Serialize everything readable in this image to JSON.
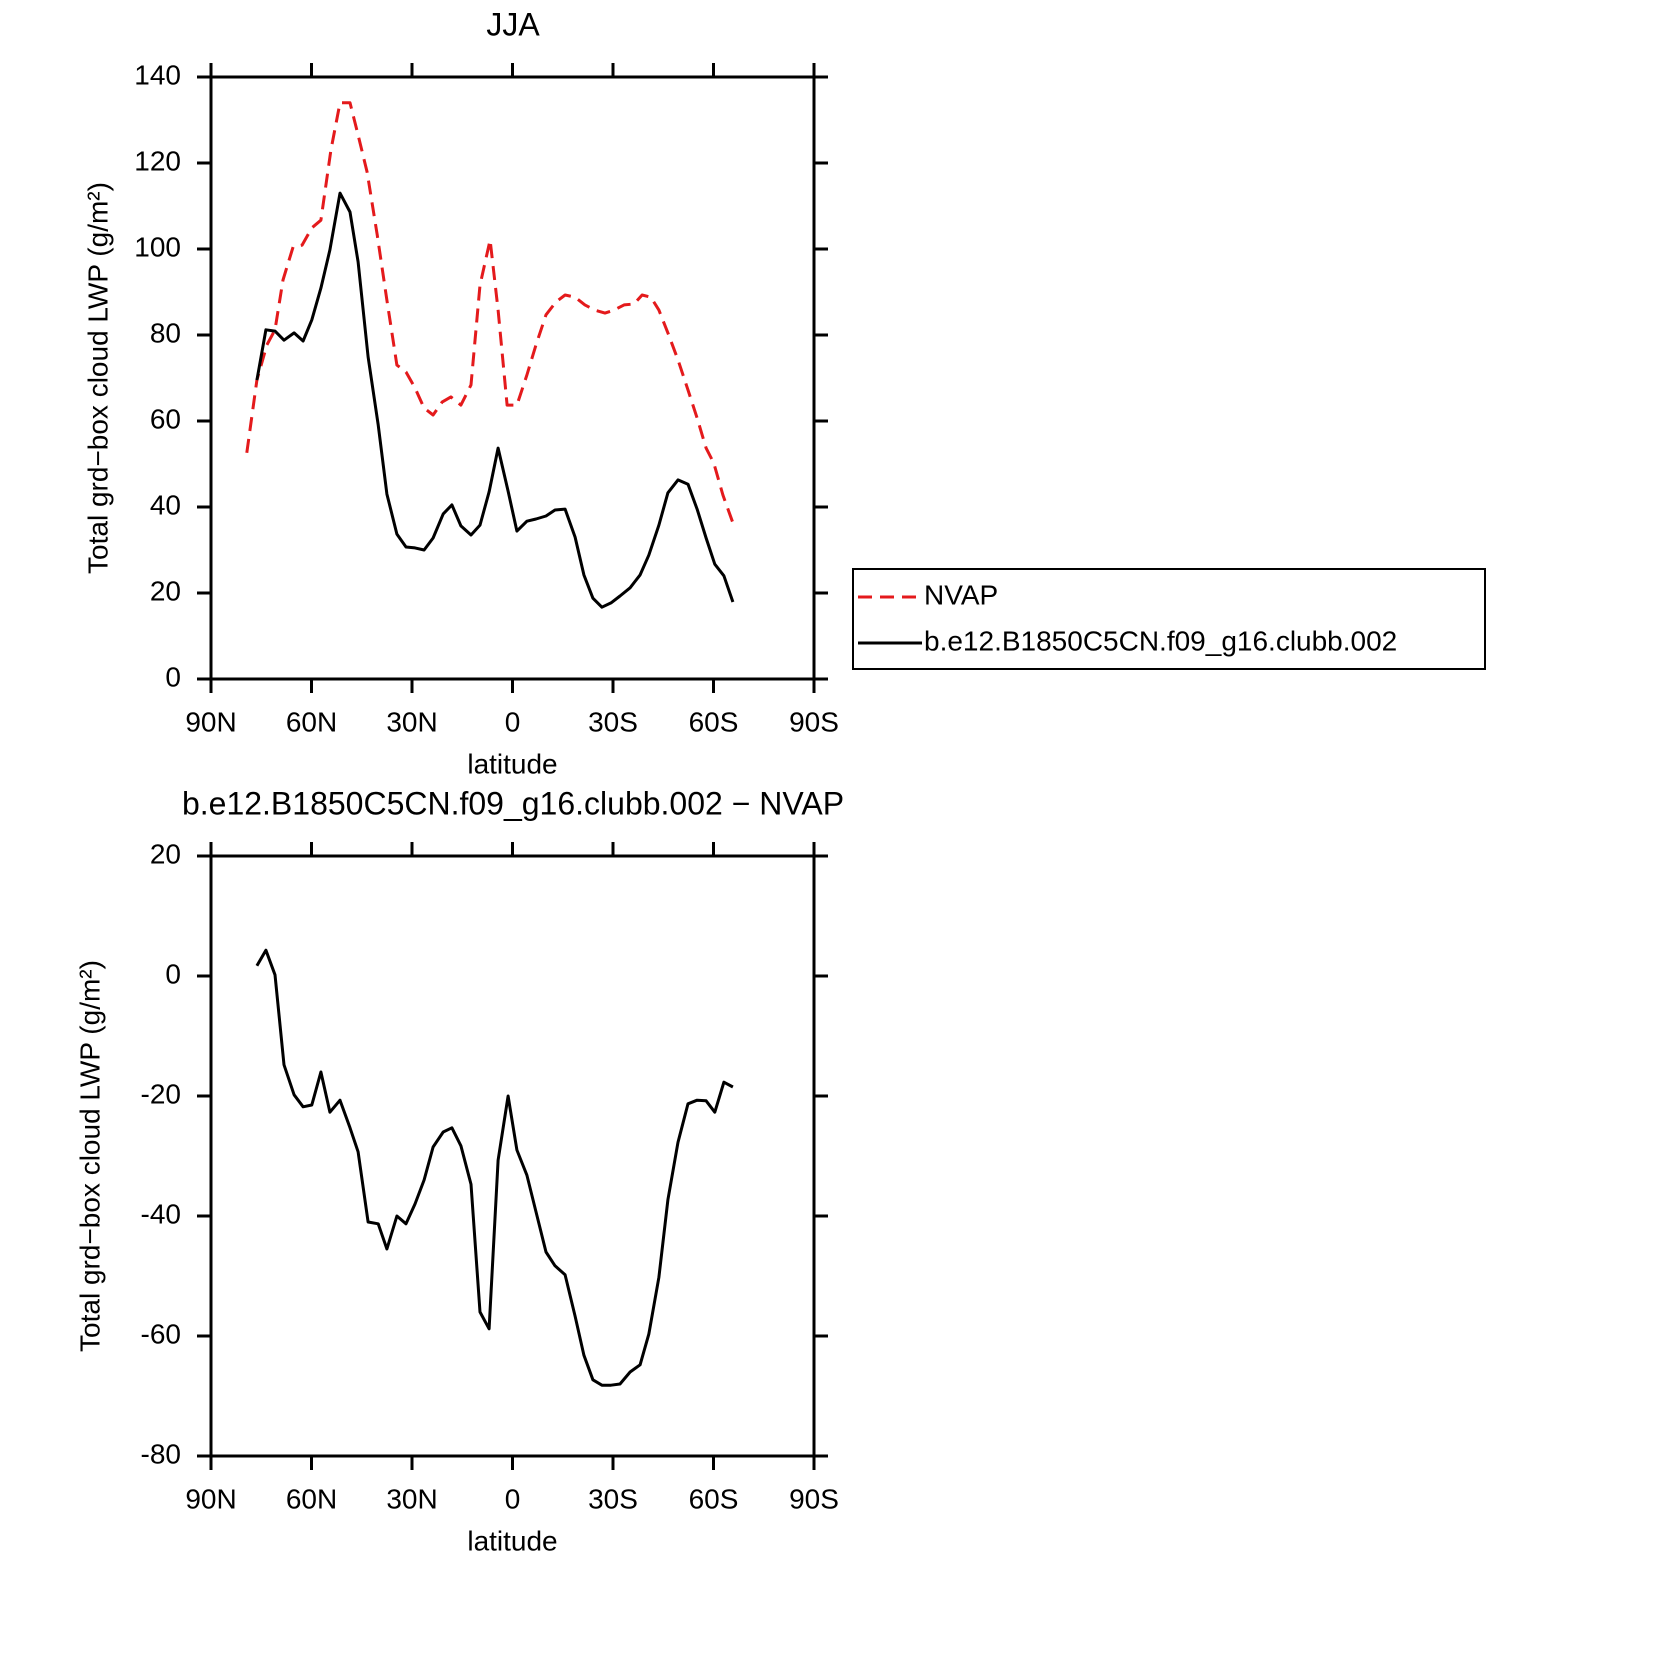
{
  "chart_data": [
    {
      "type": "line",
      "title": "JJA",
      "xlabel": "latitude",
      "ylabel": "Total grd−box cloud LWP (g/m²)",
      "xlim": [
        90,
        -90
      ],
      "xticks": [
        {
          "value": 90,
          "label": "90N"
        },
        {
          "value": 60,
          "label": "60N"
        },
        {
          "value": 30,
          "label": "30N"
        },
        0,
        {
          "value": -30,
          "label": "30S"
        },
        {
          "value": -60,
          "label": "60S"
        },
        {
          "value": -90,
          "label": "90S"
        }
      ],
      "ylim": [
        0,
        140
      ],
      "yticks": [
        0,
        20,
        40,
        60,
        80,
        100,
        120,
        140
      ],
      "legend": "right",
      "series": [
        {
          "name": "NVAP",
          "color": "#e41a1c",
          "dash": true,
          "x": [
            79.3,
            76.3,
            73.3,
            70.9,
            68.5,
            65.5,
            62.8,
            59.9,
            57.2,
            54.2,
            51.5,
            48.5,
            46.1,
            43.4,
            40.4,
            37.5,
            34.5,
            31.8,
            29.1,
            26.4,
            23.7,
            21.0,
            18.4,
            15.4,
            12.4,
            9.7,
            6.7,
            4.3,
            1.6,
            -1.3,
            -4.3,
            -7.0,
            -10.0,
            -13.0,
            -15.7,
            -18.7,
            -21.6,
            -24.6,
            -27.6,
            -30.3,
            -33.3,
            -36.3,
            -38.7,
            -41.3,
            -43.7,
            -46.4,
            -49.4,
            -52.4,
            -55.1,
            -57.8,
            -60.1,
            -62.8,
            -65.8
          ],
          "values": [
            52.6,
            69.5,
            77.7,
            81.2,
            92.8,
            100.5,
            100.9,
            104.9,
            106.7,
            123.0,
            134.0,
            134.0,
            126.5,
            117.9,
            103.3,
            88.1,
            73.0,
            71.4,
            67.7,
            63.0,
            61.4,
            64.4,
            65.6,
            63.7,
            68.4,
            91.6,
            102.1,
            85.8,
            63.7,
            63.7,
            70.7,
            77.7,
            84.7,
            87.7,
            89.3,
            88.8,
            87.0,
            85.8,
            85.1,
            85.8,
            87.0,
            87.2,
            89.3,
            88.8,
            85.8,
            80.5,
            74.2,
            67.2,
            60.7,
            53.7,
            50.2,
            42.8,
            36.3
          ]
        },
        {
          "name": "b.e12.B1850C5CN.f09_g16.clubb.002",
          "color": "#000000",
          "dash": false,
          "x": [
            76.3,
            73.6,
            70.9,
            68.2,
            65.2,
            62.5,
            59.9,
            57.2,
            54.5,
            51.5,
            48.5,
            46.1,
            43.1,
            40.1,
            37.5,
            34.5,
            31.8,
            29.1,
            26.4,
            23.7,
            20.7,
            18.1,
            15.4,
            12.4,
            9.7,
            7.0,
            4.3,
            1.3,
            -1.3,
            -4.3,
            -7.0,
            -10.0,
            -12.7,
            -15.7,
            -18.7,
            -21.3,
            -24.0,
            -26.7,
            -29.4,
            -32.1,
            -35.1,
            -38.1,
            -40.7,
            -43.7,
            -46.4,
            -49.4,
            -52.4,
            -55.1,
            -57.8,
            -60.4,
            -63.1,
            -65.8
          ],
          "values": [
            69.5,
            81.2,
            80.9,
            78.8,
            80.5,
            78.6,
            83.5,
            90.9,
            99.8,
            113.0,
            108.6,
            97.0,
            74.9,
            59.1,
            43.0,
            33.7,
            30.7,
            30.5,
            30.0,
            32.8,
            38.4,
            40.5,
            35.6,
            33.5,
            35.8,
            43.5,
            53.7,
            43.7,
            34.4,
            36.7,
            37.2,
            37.9,
            39.3,
            39.5,
            33.0,
            24.2,
            18.8,
            16.7,
            17.7,
            19.3,
            21.2,
            24.2,
            28.8,
            35.8,
            43.3,
            46.3,
            45.3,
            39.5,
            32.8,
            26.7,
            24.0,
            17.9
          ]
        }
      ]
    },
    {
      "type": "line",
      "title": "b.e12.B1850C5CN.f09_g16.clubb.002 − NVAP",
      "xlabel": "latitude",
      "ylabel": "Total grd−box cloud LWP (g/m²)",
      "xlim": [
        90,
        -90
      ],
      "xticks": [
        {
          "value": 90,
          "label": "90N"
        },
        {
          "value": 60,
          "label": "60N"
        },
        {
          "value": 30,
          "label": "30N"
        },
        0,
        {
          "value": -30,
          "label": "30S"
        },
        {
          "value": -60,
          "label": "60S"
        },
        {
          "value": -90,
          "label": "90S"
        }
      ],
      "ylim": [
        -80,
        20
      ],
      "yticks": [
        -80,
        -60,
        -40,
        -20,
        0,
        20
      ],
      "series": [
        {
          "color": "#000000",
          "dash": false,
          "x": [
            76.3,
            73.6,
            70.9,
            68.2,
            65.2,
            62.5,
            59.9,
            57.2,
            54.5,
            51.5,
            48.5,
            46.1,
            43.1,
            40.1,
            37.5,
            34.5,
            31.8,
            29.1,
            26.4,
            23.7,
            20.7,
            18.1,
            15.4,
            12.4,
            9.7,
            7.0,
            4.3,
            1.3,
            -1.3,
            -4.3,
            -7.0,
            -10.0,
            -12.7,
            -15.7,
            -18.7,
            -21.3,
            -24.0,
            -26.7,
            -29.4,
            -32.1,
            -35.1,
            -38.1,
            -40.7,
            -43.7,
            -46.4,
            -49.4,
            -52.4,
            -55.1,
            -57.8,
            -60.4,
            -63.1,
            -65.8
          ],
          "values": [
            1.7,
            4.3,
            0.2,
            -14.8,
            -19.8,
            -21.8,
            -21.5,
            -16.0,
            -22.7,
            -20.7,
            -25.3,
            -29.3,
            -41.0,
            -41.3,
            -45.5,
            -40.0,
            -41.3,
            -38.0,
            -34.0,
            -28.5,
            -26.0,
            -25.3,
            -28.3,
            -34.7,
            -56.0,
            -58.8,
            -30.7,
            -20.0,
            -29.0,
            -33.2,
            -39.3,
            -46.0,
            -48.3,
            -49.8,
            -56.7,
            -63.2,
            -67.3,
            -68.2,
            -68.2,
            -68.0,
            -66.0,
            -64.8,
            -59.7,
            -50.2,
            -37.3,
            -27.7,
            -21.3,
            -20.7,
            -20.8,
            -22.7,
            -17.7,
            -18.5
          ]
        }
      ]
    }
  ]
}
